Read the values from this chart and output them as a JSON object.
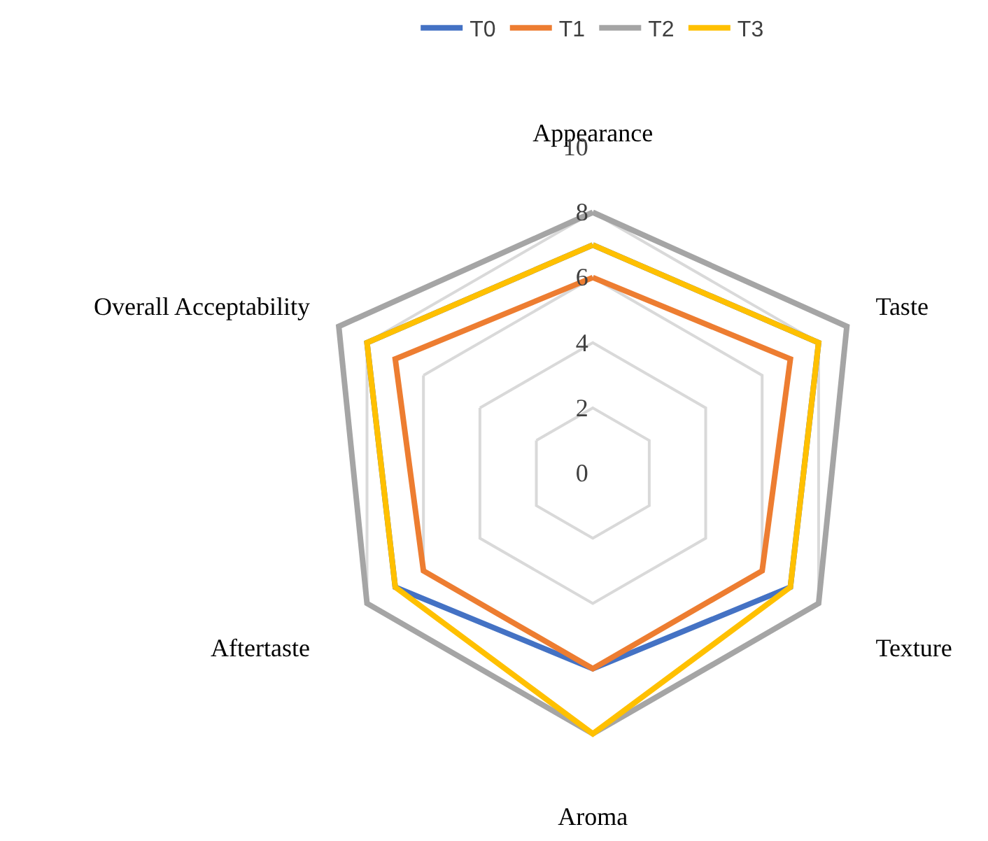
{
  "chart_data": {
    "type": "radar",
    "categories": [
      "Appearance",
      "Taste",
      "Texture",
      "Aroma",
      "Aftertaste",
      "Overall Acceptability"
    ],
    "series": [
      {
        "name": "T0",
        "color": "#4472c4",
        "values": [
          7,
          8,
          7,
          6,
          7,
          8
        ]
      },
      {
        "name": "T1",
        "color": "#ed7d31",
        "values": [
          6,
          7,
          6,
          6,
          6,
          7
        ]
      },
      {
        "name": "T2",
        "color": "#a5a5a5",
        "values": [
          8,
          9,
          8,
          8,
          8,
          9
        ]
      },
      {
        "name": "T3",
        "color": "#ffc000",
        "values": [
          7,
          8,
          7,
          8,
          7,
          8
        ]
      }
    ],
    "ylim": [
      0,
      10
    ],
    "yticks": [
      0,
      2,
      4,
      6,
      8,
      10
    ],
    "grid": true,
    "legend": "top",
    "marker": "none",
    "line_style": "solid"
  }
}
